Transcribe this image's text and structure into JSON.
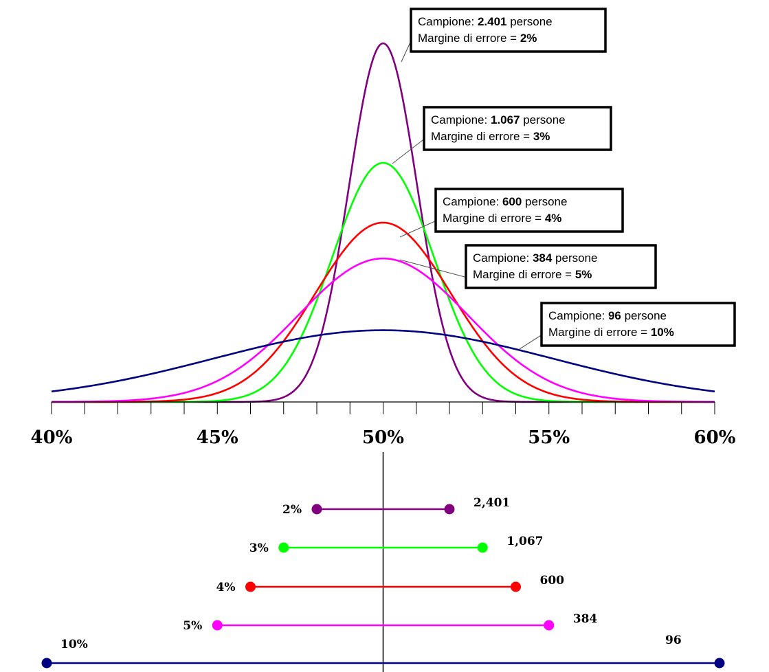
{
  "chart_data": [
    {
      "type": "line",
      "description_visible": "Bell curves of sample distributions for different sample sizes",
      "x_unit": "%",
      "xlim": [
        40,
        60
      ],
      "x_ticks": [
        "40%",
        "45%",
        "50%",
        "55%",
        "60%"
      ],
      "x_minor_step": 1,
      "series": [
        {
          "sample": "2.401",
          "margin": "2%",
          "sd": 1.0204,
          "color": "#800080",
          "peak_rel": 1.0
        },
        {
          "sample": "1.067",
          "margin": "3%",
          "sd": 1.5306,
          "color": "#00ff00",
          "peak_rel": 0.6667
        },
        {
          "sample": "600",
          "margin": "4%",
          "sd": 2.0408,
          "color": "#ff0000",
          "peak_rel": 0.5
        },
        {
          "sample": "384",
          "margin": "5%",
          "sd": 2.551,
          "color": "#ff00ff",
          "peak_rel": 0.4
        },
        {
          "sample": "96",
          "margin": "10%",
          "sd": 5.102,
          "color": "#000080",
          "peak_rel": 0.2
        }
      ],
      "callouts": [
        {
          "prefix": "Campione: ",
          "number": "2.401",
          "suffix": " persone",
          "margin_prefix": "Margine di errore = ",
          "margin": "2%"
        },
        {
          "prefix": "Campione: ",
          "number": "1.067",
          "suffix": " persone",
          "margin_prefix": "Margine di errore = ",
          "margin": "3%"
        },
        {
          "prefix": "Campione: ",
          "number": "600",
          "suffix": " persone",
          "margin_prefix": "Margine di errore = ",
          "margin": "4%"
        },
        {
          "prefix": "Campione: ",
          "number": "384",
          "suffix": " persone",
          "margin_prefix": "Margine di errore = ",
          "margin": "5%"
        },
        {
          "prefix": "Campione: ",
          "number": "96",
          "suffix": " persone",
          "margin_prefix": "Margine di errore = ",
          "margin": "10%"
        }
      ]
    },
    {
      "type": "interval",
      "center": 50,
      "intervals": [
        {
          "margin_label": "2%",
          "size_label": "2,401",
          "low": 48,
          "high": 52,
          "color": "#800080"
        },
        {
          "margin_label": "3%",
          "size_label": "1,067",
          "low": 47,
          "high": 53,
          "color": "#00ff00"
        },
        {
          "margin_label": "4%",
          "size_label": "600",
          "low": 46,
          "high": 54,
          "color": "#ff0000"
        },
        {
          "margin_label": "5%",
          "size_label": "384",
          "low": 45,
          "high": 55,
          "color": "#ff00ff"
        },
        {
          "margin_label": "10%",
          "size_label": "96",
          "low": 40,
          "high": 60,
          "color": "#000080"
        }
      ]
    }
  ]
}
